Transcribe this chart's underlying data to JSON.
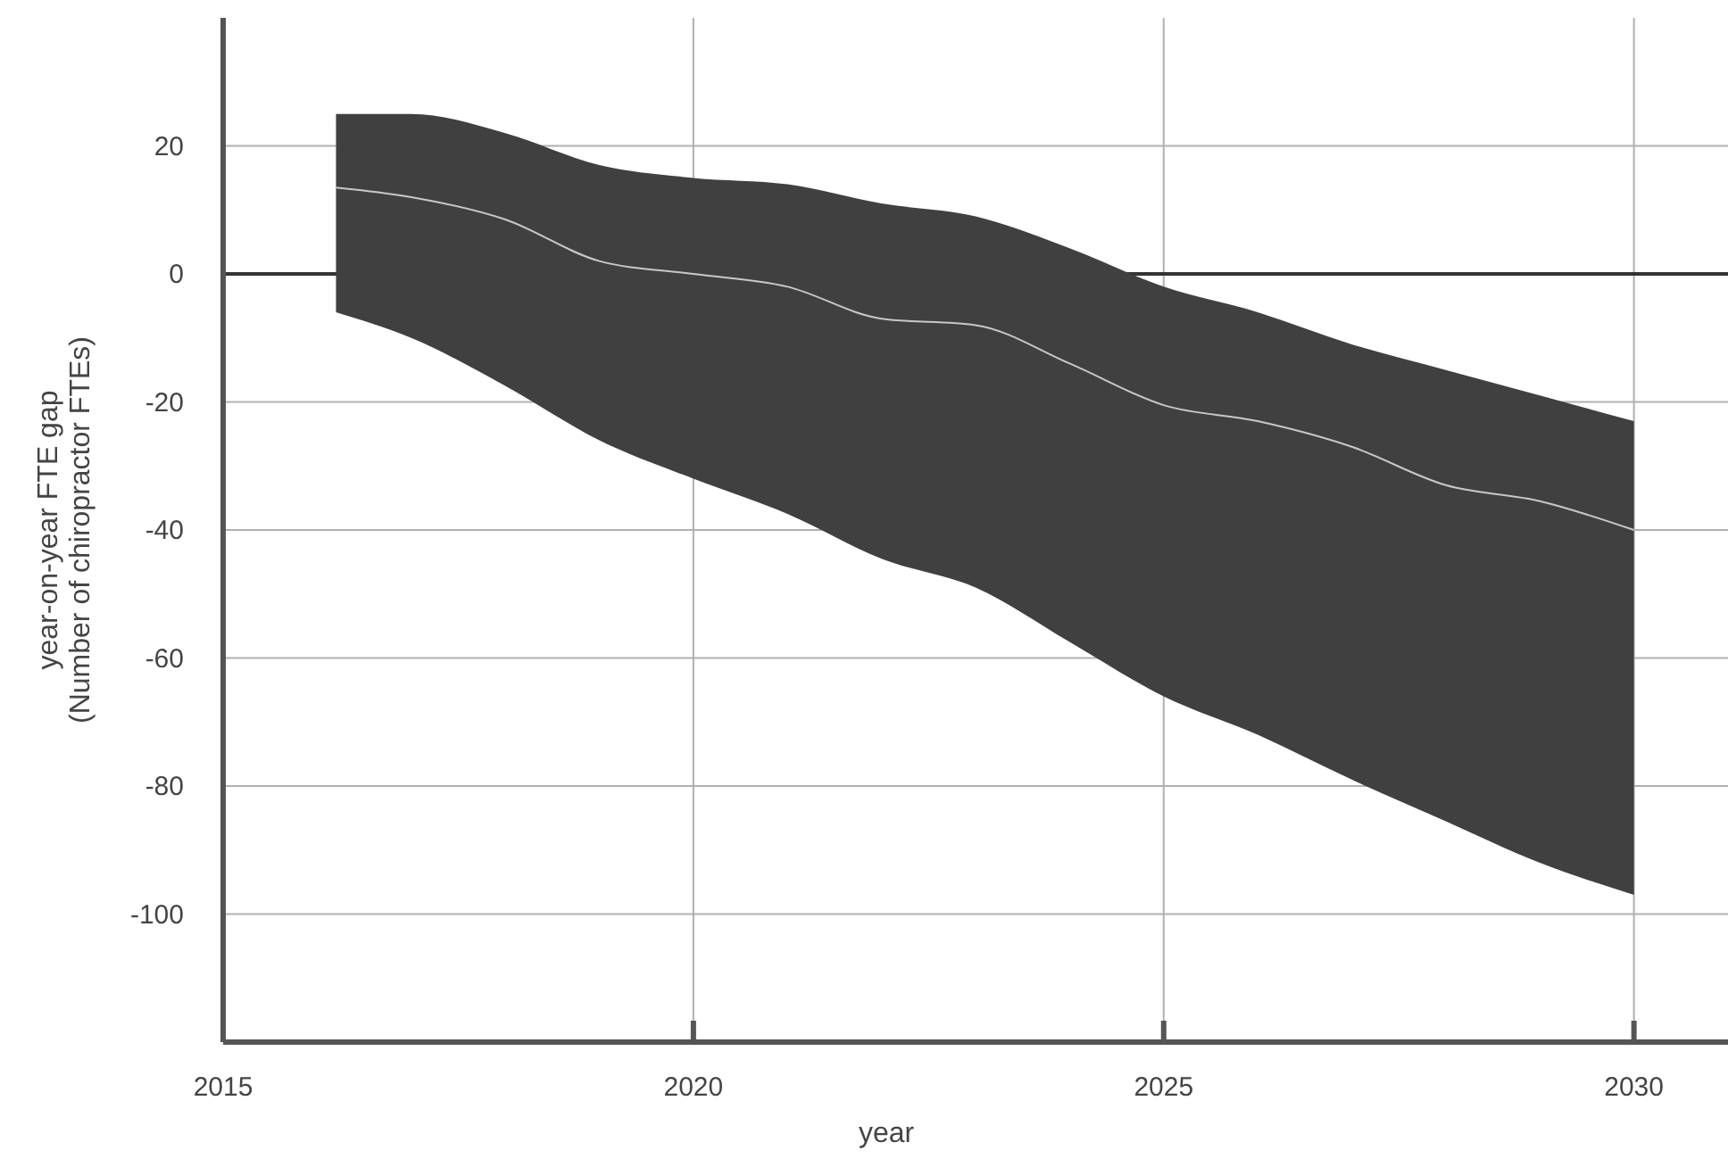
{
  "chart_data": {
    "type": "line",
    "xlabel": "year",
    "ylabel": "year-on-year FTE gap\n(Number of chiropractor FTEs)",
    "x": [
      2016.2,
      2017,
      2018,
      2019,
      2020,
      2021,
      2022,
      2023,
      2024,
      2025,
      2026,
      2027,
      2028,
      2029,
      2030
    ],
    "series": [
      {
        "color": "#c8c8c8",
        "values": [
          13.5,
          12,
          8.5,
          2,
          0,
          -2,
          -7,
          -8,
          -14,
          -20.5,
          -23,
          -27,
          -33,
          -35.5,
          -40
        ],
        "lower": [
          -6,
          -10,
          -17.5,
          -26,
          -32,
          -37.5,
          -44.5,
          -49,
          -57.5,
          -66,
          -72,
          -79,
          -85.5,
          -92,
          -97
        ],
        "upper": [
          25,
          25,
          22,
          17,
          15,
          14,
          11,
          9,
          4,
          -2,
          -6,
          -11,
          -15,
          -19,
          -23
        ]
      }
    ],
    "xlim": [
      2015,
      2031
    ],
    "ylim": [
      -120,
      40
    ],
    "xticks": [
      2015,
      2020,
      2025,
      2030
    ],
    "yticks": [
      -100,
      -80,
      -60,
      -40,
      -20,
      0,
      20
    ],
    "grid": true,
    "ref_lines": [
      {
        "axis": "y",
        "value": 0,
        "color": "#333333"
      }
    ]
  }
}
